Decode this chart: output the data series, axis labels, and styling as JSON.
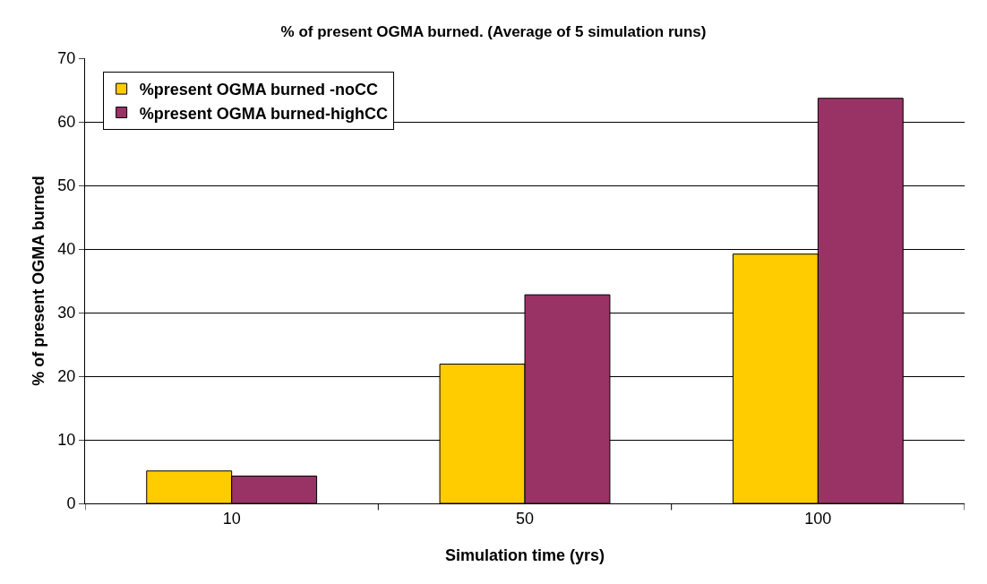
{
  "chart_data": {
    "type": "bar",
    "title": "% of present OGMA burned. (Average of 5 simulation runs)",
    "xlabel": "Simulation time (yrs)",
    "ylabel": "% of present OGMA burned",
    "categories": [
      "10",
      "50",
      "100"
    ],
    "series": [
      {
        "name": "%present OGMA burned -noCC",
        "color": "#ffcc00",
        "values": [
          5.1,
          21.9,
          39.2
        ]
      },
      {
        "name": "%present OGMA burned-highCC",
        "color": "#993366",
        "values": [
          4.3,
          32.8,
          63.7
        ]
      }
    ],
    "ylim": [
      0,
      70
    ],
    "yticks": [
      0,
      10,
      20,
      30,
      40,
      50,
      60,
      70
    ],
    "grid": "y",
    "legend": "top left"
  }
}
